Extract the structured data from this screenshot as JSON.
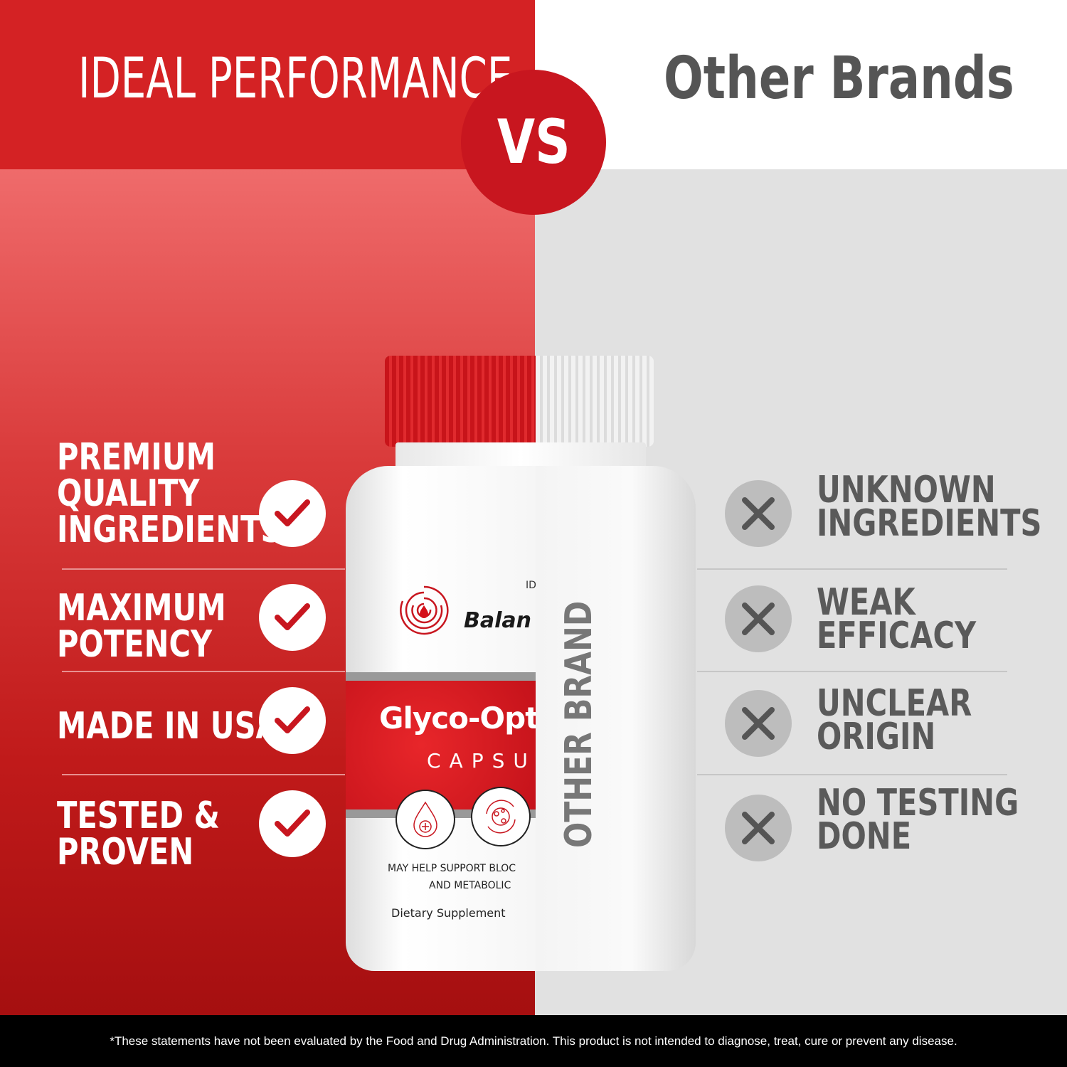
{
  "header": {
    "left_title": "IDEAL PERFORMANCE",
    "right_title": "Other Brands",
    "vs_label": "VS"
  },
  "colors": {
    "brand_red": "#d42224",
    "vs_red": "#c8161f",
    "gray_panel": "#e1e1e1",
    "gray_text": "#5a5a5a"
  },
  "ideal": {
    "items": [
      {
        "lines": [
          "PREMIUM",
          "QUALITY",
          "INGREDIENTS"
        ],
        "icon": "check-icon"
      },
      {
        "lines": [
          "MAXIMUM",
          "POTENCY"
        ],
        "icon": "check-icon"
      },
      {
        "lines": [
          "MADE IN USA"
        ],
        "icon": "check-icon"
      },
      {
        "lines": [
          "TESTED &",
          "PROVEN"
        ],
        "icon": "check-icon"
      }
    ]
  },
  "other": {
    "items": [
      {
        "lines": [
          "UNKNOWN",
          "INGREDIENTS"
        ],
        "icon": "x-icon"
      },
      {
        "lines": [
          "WEAK",
          "EFFICACY"
        ],
        "icon": "x-icon"
      },
      {
        "lines": [
          "UNCLEAR",
          "ORIGIN"
        ],
        "icon": "x-icon"
      },
      {
        "lines": [
          "NO TESTING",
          "DONE"
        ],
        "icon": "x-icon"
      }
    ]
  },
  "bottle": {
    "brand_id": "ID",
    "brand": "Balan",
    "name": "Glyco-Opt",
    "sub": "CAPSU",
    "claim_line1": "MAY HELP SUPPORT BLOC",
    "claim_line2": "AND METABOLIC",
    "type": "Dietary Supplement",
    "other_label": "OTHER BRAND"
  },
  "footer": {
    "disclaimer": "*These statements have not been evaluated by the Food and Drug Administration. This product is not intended to diagnose, treat, cure or prevent any disease."
  }
}
